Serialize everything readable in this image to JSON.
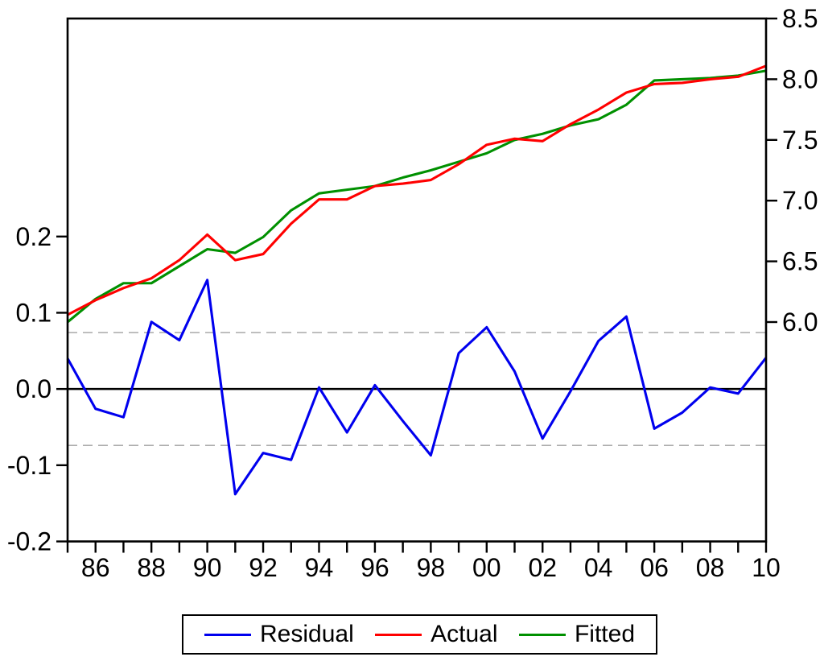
{
  "chart_data": {
    "type": "line",
    "title": "",
    "description": "Residual / Actual / Fitted regression diagnostic plot, annual data 1985-2010",
    "x": {
      "range": [
        1985,
        2010
      ],
      "tick_step": 1,
      "labeled_years": [
        1986,
        1988,
        1990,
        1992,
        1994,
        1996,
        1998,
        2000,
        2002,
        2004,
        2006,
        2008,
        2010
      ],
      "labels": [
        "86",
        "88",
        "90",
        "92",
        "94",
        "96",
        "98",
        "00",
        "02",
        "04",
        "06",
        "08",
        "10"
      ]
    },
    "left_axis": {
      "range": [
        -0.2,
        0.486
      ],
      "tick_values": [
        0.2,
        0.1,
        0.0,
        -0.1,
        -0.2
      ],
      "tick_labels": [
        "0.2",
        "0.1",
        "0.0",
        "-0.1",
        "-0.2"
      ],
      "grid": false
    },
    "right_axis": {
      "range": [
        4.193,
        8.5
      ],
      "tick_values": [
        8.5,
        8.0,
        7.5,
        7.0,
        6.5,
        6.0
      ],
      "tick_labels": [
        "8.5",
        "8.0",
        "7.5",
        "7.0",
        "6.5",
        "6.0"
      ],
      "grid": false
    },
    "zero_line": {
      "value": 0.0,
      "axis": "left",
      "color": "#000000"
    },
    "se_bands": {
      "values": [
        0.074,
        -0.074
      ],
      "axis": "left",
      "color": "#a0a0a0",
      "style": "dashed"
    },
    "series": [
      {
        "name": "Residual",
        "axis": "left",
        "color": "#0000ee",
        "values": [
          0.04,
          -0.026,
          -0.037,
          0.088,
          0.064,
          0.143,
          -0.138,
          -0.084,
          -0.093,
          0.002,
          -0.057,
          0.005,
          -0.042,
          -0.087,
          0.047,
          0.081,
          0.023,
          -0.065,
          -0.003,
          0.063,
          0.095,
          -0.052,
          -0.031,
          0.002,
          -0.006,
          0.041
        ]
      },
      {
        "name": "Actual",
        "axis": "right",
        "color": "#ff0000",
        "values": [
          6.06,
          6.18,
          6.28,
          6.36,
          6.51,
          6.72,
          6.51,
          6.56,
          6.81,
          7.01,
          7.01,
          7.12,
          7.14,
          7.17,
          7.3,
          7.46,
          7.51,
          7.49,
          7.63,
          7.75,
          7.89,
          7.96,
          7.97,
          8.0,
          8.02,
          8.11
        ]
      },
      {
        "name": "Fitted",
        "axis": "right",
        "color": "#009000",
        "values": [
          6.0,
          6.19,
          6.32,
          6.32,
          6.46,
          6.6,
          6.57,
          6.7,
          6.92,
          7.06,
          7.09,
          7.12,
          7.19,
          7.25,
          7.32,
          7.39,
          7.5,
          7.55,
          7.62,
          7.67,
          7.79,
          7.99,
          8.0,
          8.01,
          8.03,
          8.07
        ]
      }
    ],
    "legend": {
      "position": "bottom-center",
      "entries": [
        "Residual",
        "Actual",
        "Fitted"
      ]
    }
  },
  "colors": {
    "background": "#ffffff",
    "axis": "#000000",
    "residual": "#0000ee",
    "actual": "#ff0000",
    "fitted": "#009000",
    "se_band": "#a0a0a0"
  }
}
